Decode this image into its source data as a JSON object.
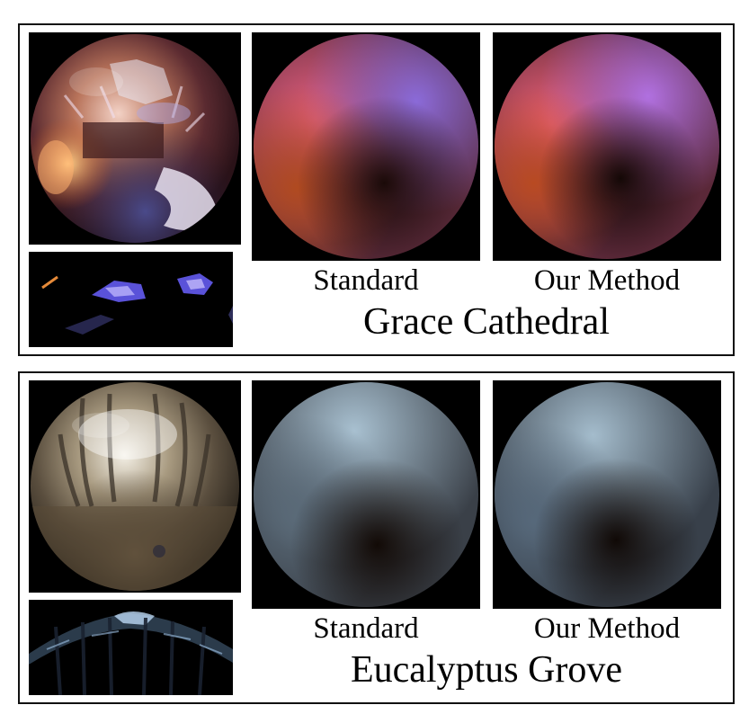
{
  "figure": {
    "panels": [
      {
        "title": "Grace Cathedral",
        "standard_label": "Standard",
        "method_label": "Our Method"
      },
      {
        "title": "Eucalyptus Grove",
        "standard_label": "Standard",
        "method_label": "Our Method"
      }
    ]
  }
}
